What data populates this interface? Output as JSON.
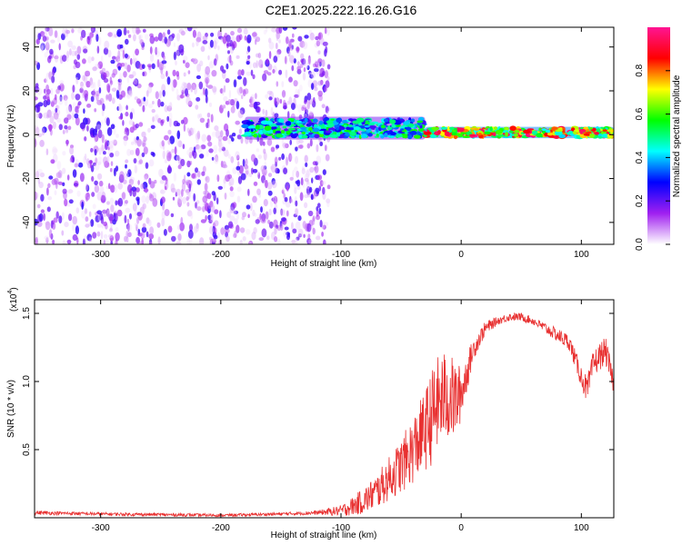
{
  "title": "C2E1.2025.222.16.26.G16",
  "chart_data": [
    {
      "type": "heatmap",
      "xlabel": "Height of straight line (km)",
      "ylabel": "Frequency (Hz)",
      "xlim": [
        -355,
        127
      ],
      "ylim": [
        -50,
        49
      ],
      "x_ticks": [
        -300,
        -200,
        -100,
        0,
        100
      ],
      "x_tick_labels": [
        "-300",
        "-200",
        "-100",
        "0",
        "100"
      ],
      "y_ticks": [
        -40,
        -20,
        0,
        20,
        40
      ],
      "y_tick_labels": [
        "-40",
        "-20",
        "0",
        "20",
        "40"
      ],
      "colorbar": {
        "label": "Normalized spectral amplitude",
        "range": [
          0,
          1
        ],
        "ticks": [
          0,
          0.2,
          0.4,
          0.6,
          0.8
        ],
        "tick_labels": [
          "0.0",
          "0.2",
          "0.4",
          "0.6",
          "0.8"
        ],
        "colors": [
          "#ffffff",
          "#a020f0",
          "#0000ff",
          "#00ffff",
          "#00ff00",
          "#ffff00",
          "#ff0000",
          "#ff1493"
        ]
      },
      "regions": [
        {
          "x_range": [
            -355,
            -110
          ],
          "frequency_range": [
            -50,
            49
          ],
          "amplitude": [
            0.02,
            0.25
          ],
          "pattern": "scattered noise"
        },
        {
          "x_range": [
            -180,
            -30
          ],
          "center_frequency": 3,
          "spread_hz": 4,
          "amplitude": [
            0.2,
            0.6
          ],
          "pattern": "signal band"
        },
        {
          "x_range": [
            -30,
            127
          ],
          "center_frequency": 1,
          "spread_hz": 2,
          "amplitude": [
            0.4,
            1.0
          ],
          "pattern": "strong carrier line"
        }
      ],
      "grid": false
    },
    {
      "type": "line",
      "xlabel": "Height of straight line (km)",
      "ylabel": "SNR (10 * v/v)",
      "yscale_label": "(x10",
      "yscale_exponent": "4",
      "xlim": [
        -355,
        127
      ],
      "ylim": [
        0,
        1.6
      ],
      "x_ticks": [
        -300,
        -200,
        -100,
        0,
        100
      ],
      "x_tick_labels": [
        "-300",
        "-200",
        "-100",
        "0",
        "100"
      ],
      "y_ticks": [
        0.5,
        1.0,
        1.5
      ],
      "y_tick_labels": [
        "0.5",
        "1.0",
        "1.5"
      ],
      "line_color": "#e83030",
      "grid": false,
      "series": [
        {
          "x": [
            -355,
            -300,
            -250,
            -200,
            -150,
            -120,
            -100,
            -90,
            -80,
            -70,
            -60,
            -50,
            -40,
            -30,
            -25,
            -20,
            -15,
            -10,
            -5,
            0,
            10,
            20,
            30,
            40,
            50,
            60,
            70,
            80,
            90,
            100,
            105,
            110,
            115,
            120,
            127
          ],
          "y": [
            0.04,
            0.03,
            0.025,
            0.02,
            0.03,
            0.04,
            0.06,
            0.1,
            0.15,
            0.22,
            0.32,
            0.42,
            0.55,
            0.7,
            0.8,
            0.9,
            0.95,
            0.95,
            0.92,
            0.95,
            1.25,
            1.4,
            1.45,
            1.48,
            1.48,
            1.45,
            1.4,
            1.35,
            1.3,
            1.05,
            0.95,
            1.15,
            1.2,
            1.25,
            1.0
          ],
          "noise": [
            0.015,
            0.012,
            0.012,
            0.01,
            0.012,
            0.015,
            0.04,
            0.07,
            0.1,
            0.13,
            0.16,
            0.2,
            0.25,
            0.3,
            0.35,
            0.35,
            0.35,
            0.32,
            0.3,
            0.2,
            0.08,
            0.05,
            0.03,
            0.03,
            0.03,
            0.03,
            0.04,
            0.05,
            0.06,
            0.08,
            0.1,
            0.1,
            0.1,
            0.1,
            0.08
          ]
        }
      ]
    }
  ]
}
